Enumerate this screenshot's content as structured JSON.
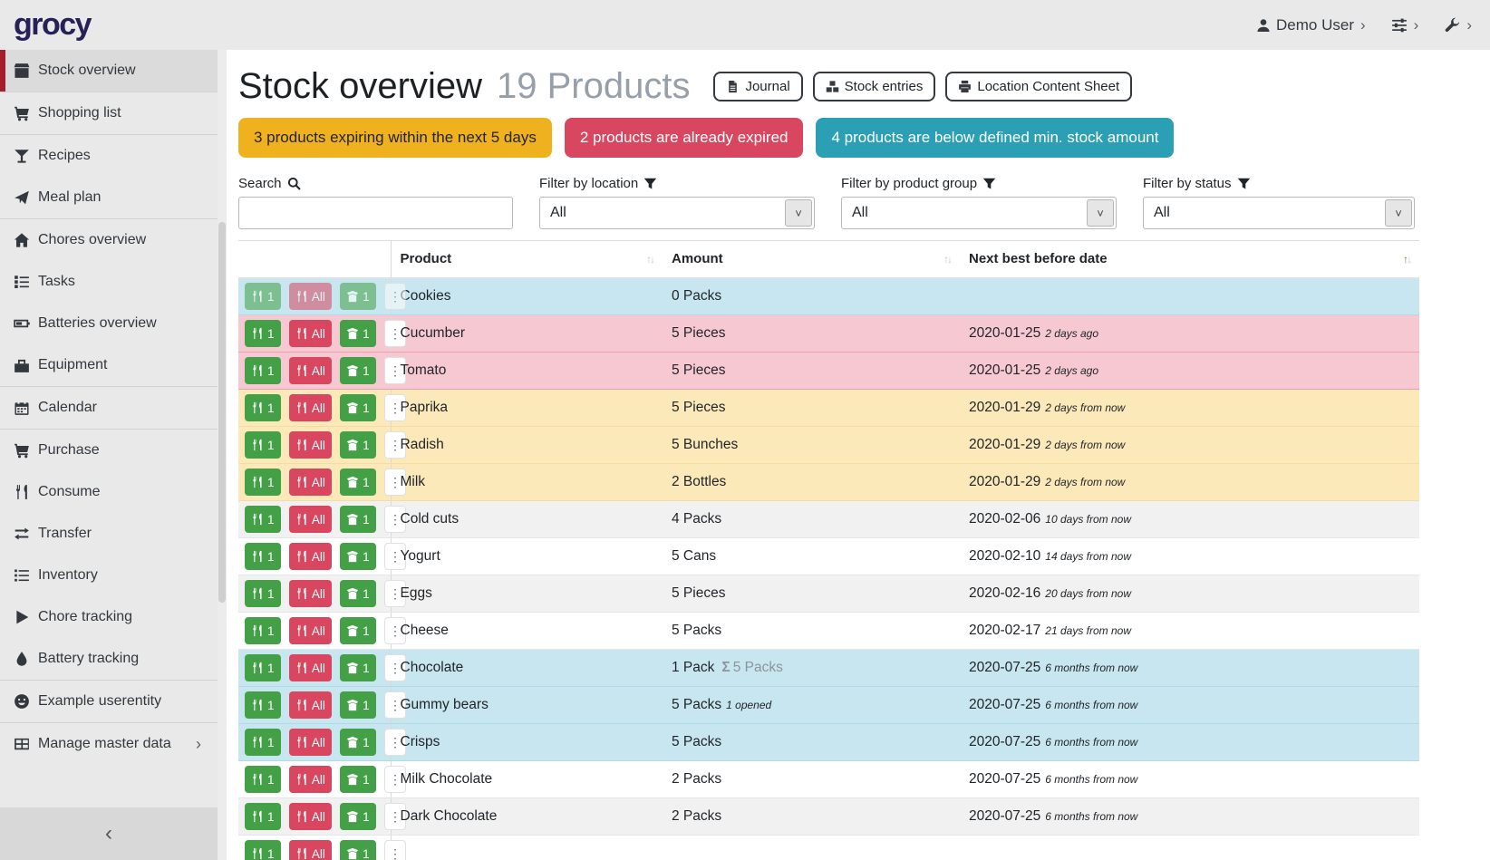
{
  "navbar": {
    "logo": "grocy",
    "user_label": "Demo User",
    "chevron": "›"
  },
  "sidebar": {
    "collapse_icon": "‹",
    "items": [
      {
        "label": "Stock overview",
        "icon": "box-icon",
        "active": true,
        "divider_after": true
      },
      {
        "label": "Shopping list",
        "icon": "cart-icon",
        "divider_after": true
      },
      {
        "label": "Recipes",
        "icon": "cocktail-icon"
      },
      {
        "label": "Meal plan",
        "icon": "paper-plane-icon",
        "divider_after": true
      },
      {
        "label": "Chores overview",
        "icon": "home-icon"
      },
      {
        "label": "Tasks",
        "icon": "tasks-icon"
      },
      {
        "label": "Batteries overview",
        "icon": "battery-icon"
      },
      {
        "label": "Equipment",
        "icon": "toolbox-icon",
        "divider_after": true
      },
      {
        "label": "Calendar",
        "icon": "calendar-icon",
        "divider_after": true
      },
      {
        "label": "Purchase",
        "icon": "cart-icon"
      },
      {
        "label": "Consume",
        "icon": "utensils-icon"
      },
      {
        "label": "Transfer",
        "icon": "transfer-icon"
      },
      {
        "label": "Inventory",
        "icon": "list-icon"
      },
      {
        "label": "Chore tracking",
        "icon": "play-icon"
      },
      {
        "label": "Battery tracking",
        "icon": "droplet-icon",
        "divider_after": true
      },
      {
        "label": "Example userentity",
        "icon": "smiley-icon",
        "divider_after": true
      },
      {
        "label": "Manage master data",
        "icon": "table-icon",
        "chevron": "›"
      }
    ]
  },
  "header": {
    "title": "Stock overview",
    "subtitle": "19 Products",
    "buttons": [
      {
        "label": "Journal",
        "icon": "file-icon"
      },
      {
        "label": "Stock entries",
        "icon": "boxes-icon"
      },
      {
        "label": "Location Content Sheet",
        "icon": "print-icon"
      }
    ]
  },
  "banners": [
    {
      "text": "3 products expiring within the next 5 days",
      "bg": "#f0b11e",
      "fg": "#212529"
    },
    {
      "text": "2 products are already expired",
      "bg": "#d9465f",
      "fg": "#ffffff"
    },
    {
      "text": "4 products are below defined min. stock amount",
      "bg": "#2b9fb3",
      "fg": "#ffffff"
    }
  ],
  "filters": {
    "search": {
      "label": "Search",
      "value": ""
    },
    "selects": [
      {
        "label": "Filter by location",
        "value": "All"
      },
      {
        "label": "Filter by product group",
        "value": "All"
      },
      {
        "label": "Filter by status",
        "value": "All"
      }
    ]
  },
  "table": {
    "columns": [
      {
        "label": "Product",
        "sorted": false
      },
      {
        "label": "Amount",
        "sorted": false
      },
      {
        "label": "Next best before date",
        "sorted": true
      }
    ],
    "row_actions": {
      "consume_one": "1",
      "consume_all": "All",
      "open_one": "1"
    },
    "rows": [
      {
        "product": "Cookies",
        "amount": "0 Packs",
        "extra": "",
        "extra_style": "",
        "date": "",
        "relative": "",
        "status": "belowmin",
        "disabled": true
      },
      {
        "product": "Cucumber",
        "amount": "5 Pieces",
        "extra": "",
        "extra_style": "",
        "date": "2020-01-25",
        "relative": "2 days ago",
        "status": "expired",
        "disabled": false
      },
      {
        "product": "Tomato",
        "amount": "5 Pieces",
        "extra": "",
        "extra_style": "",
        "date": "2020-01-25",
        "relative": "2 days ago",
        "status": "expired",
        "disabled": false
      },
      {
        "product": "Paprika",
        "amount": "5 Pieces",
        "extra": "",
        "extra_style": "",
        "date": "2020-01-29",
        "relative": "2 days from now",
        "status": "expiring",
        "disabled": false
      },
      {
        "product": "Radish",
        "amount": "5 Bunches",
        "extra": "",
        "extra_style": "",
        "date": "2020-01-29",
        "relative": "2 days from now",
        "status": "expiring",
        "disabled": false
      },
      {
        "product": "Milk",
        "amount": "2 Bottles",
        "extra": "",
        "extra_style": "",
        "date": "2020-01-29",
        "relative": "2 days from now",
        "status": "expiring",
        "disabled": false
      },
      {
        "product": "Cold cuts",
        "amount": "4 Packs",
        "extra": "",
        "extra_style": "",
        "date": "2020-02-06",
        "relative": "10 days from now",
        "status": "",
        "disabled": false
      },
      {
        "product": "Yogurt",
        "amount": "5 Cans",
        "extra": "",
        "extra_style": "",
        "date": "2020-02-10",
        "relative": "14 days from now",
        "status": "",
        "disabled": false
      },
      {
        "product": "Eggs",
        "amount": "5 Pieces",
        "extra": "",
        "extra_style": "",
        "date": "2020-02-16",
        "relative": "20 days from now",
        "status": "",
        "disabled": false
      },
      {
        "product": "Cheese",
        "amount": "5 Packs",
        "extra": "",
        "extra_style": "",
        "date": "2020-02-17",
        "relative": "21 days from now",
        "status": "",
        "disabled": false
      },
      {
        "product": "Chocolate",
        "amount": "1 Pack",
        "extra": "5 Packs",
        "extra_style": "sum",
        "date": "2020-07-25",
        "relative": "6 months from now",
        "status": "belowmin",
        "disabled": false
      },
      {
        "product": "Gummy bears",
        "amount": "5 Packs",
        "extra": "1 opened",
        "extra_style": "opened",
        "date": "2020-07-25",
        "relative": "6 months from now",
        "status": "belowmin",
        "disabled": false
      },
      {
        "product": "Crisps",
        "amount": "5 Packs",
        "extra": "",
        "extra_style": "",
        "date": "2020-07-25",
        "relative": "6 months from now",
        "status": "belowmin",
        "disabled": false
      },
      {
        "product": "Milk Chocolate",
        "amount": "2 Packs",
        "extra": "",
        "extra_style": "",
        "date": "2020-07-25",
        "relative": "6 months from now",
        "status": "",
        "disabled": false
      },
      {
        "product": "Dark Chocolate",
        "amount": "2 Packs",
        "extra": "",
        "extra_style": "",
        "date": "2020-07-25",
        "relative": "6 months from now",
        "status": "",
        "disabled": false
      },
      {
        "product": "",
        "amount": "",
        "extra": "",
        "extra_style": "",
        "date": "",
        "relative": "",
        "status": "",
        "disabled": false
      }
    ],
    "sigma": "Σ",
    "sort_glyphs": {
      "up": "↑",
      "down": "↓"
    }
  }
}
